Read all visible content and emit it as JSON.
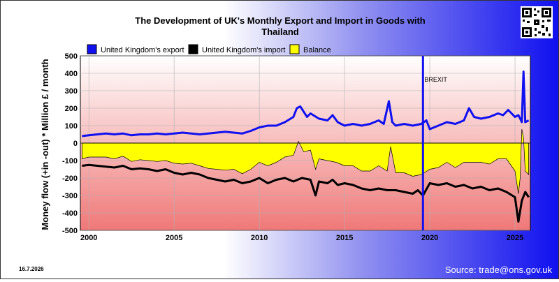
{
  "date_stamp": "16.7.2026",
  "source": "Source: trade@ons.gov.uk",
  "colors": {
    "export": "#1010f0",
    "import": "#000000",
    "balance": "#ffff00",
    "brexit": "#1010f0"
  },
  "chart_data": {
    "type": "line",
    "title": "The Development of UK's Monthly Export and Import in Goods with Thailand",
    "title_lines": [
      "The Development of UK's Monthly Export and Import in Goods with",
      "Thailand"
    ],
    "ylabel": "Money flow (+in -out) * Million £ / month",
    "xlabel": "",
    "xlim": [
      1999.5,
      2025.9
    ],
    "ylim": [
      -500,
      500
    ],
    "x_ticks": [
      2000,
      2005,
      2010,
      2015,
      2020,
      2025
    ],
    "x_tick_labels": [
      "2000",
      "2005",
      "2010",
      "2015",
      "2020",
      "2025"
    ],
    "y_ticks": [
      -500,
      -400,
      -300,
      -200,
      -100,
      0,
      100,
      200,
      300,
      400,
      500
    ],
    "y_tick_labels": [
      "-500",
      "-400",
      "-300",
      "-200",
      "-100",
      "0",
      "100",
      "200",
      "300",
      "400",
      "500"
    ],
    "grid": true,
    "legend_position": "top-left",
    "annotations": [
      {
        "x": 2019.6,
        "text": "BREXIT"
      }
    ],
    "series": [
      {
        "name": "United Kingdom's export",
        "style": "line",
        "x": [
          1999.6,
          2000.0,
          2000.5,
          2001.0,
          2001.5,
          2002.0,
          2002.5,
          2003.0,
          2003.5,
          2004.0,
          2004.5,
          2005.0,
          2005.5,
          2006.0,
          2006.5,
          2007.0,
          2007.5,
          2008.0,
          2008.5,
          2009.0,
          2009.5,
          2010.0,
          2010.5,
          2011.0,
          2011.5,
          2012.0,
          2012.2,
          2012.4,
          2012.6,
          2012.8,
          2013.0,
          2013.5,
          2014.0,
          2014.3,
          2014.6,
          2015.0,
          2015.5,
          2016.0,
          2016.5,
          2017.0,
          2017.3,
          2017.6,
          2017.8,
          2018.0,
          2018.5,
          2019.0,
          2019.5,
          2019.8,
          2020.0,
          2020.5,
          2021.0,
          2021.5,
          2022.0,
          2022.3,
          2022.6,
          2023.0,
          2023.5,
          2024.0,
          2024.3,
          2024.6,
          2025.0,
          2025.2,
          2025.3,
          2025.4,
          2025.5,
          2025.6,
          2025.8
        ],
        "values": [
          40,
          45,
          50,
          55,
          50,
          55,
          45,
          50,
          50,
          55,
          50,
          55,
          60,
          55,
          50,
          55,
          60,
          65,
          60,
          55,
          70,
          90,
          100,
          100,
          120,
          150,
          200,
          210,
          180,
          150,
          170,
          140,
          130,
          160,
          120,
          100,
          110,
          100,
          110,
          130,
          110,
          240,
          120,
          100,
          110,
          100,
          110,
          130,
          80,
          100,
          120,
          110,
          130,
          200,
          150,
          140,
          150,
          170,
          160,
          190,
          150,
          160,
          140,
          120,
          410,
          120,
          130
        ]
      },
      {
        "name": "United Kingdom's import",
        "style": "line",
        "x": [
          1999.6,
          2000.0,
          2000.5,
          2001.0,
          2001.5,
          2002.0,
          2002.5,
          2003.0,
          2003.5,
          2004.0,
          2004.5,
          2005.0,
          2005.5,
          2006.0,
          2006.5,
          2007.0,
          2007.5,
          2008.0,
          2008.5,
          2009.0,
          2009.5,
          2010.0,
          2010.5,
          2011.0,
          2011.5,
          2012.0,
          2012.5,
          2013.0,
          2013.3,
          2013.5,
          2014.0,
          2014.3,
          2014.6,
          2015.0,
          2015.5,
          2016.0,
          2016.5,
          2017.0,
          2017.5,
          2018.0,
          2018.5,
          2019.0,
          2019.3,
          2019.6,
          2020.0,
          2020.5,
          2021.0,
          2021.5,
          2022.0,
          2022.5,
          2023.0,
          2023.5,
          2024.0,
          2024.5,
          2025.0,
          2025.2,
          2025.4,
          2025.6,
          2025.8
        ],
        "values": [
          -130,
          -125,
          -130,
          -135,
          -140,
          -130,
          -150,
          -145,
          -150,
          -160,
          -150,
          -170,
          -180,
          -170,
          -180,
          -200,
          -210,
          -220,
          -210,
          -230,
          -220,
          -200,
          -230,
          -210,
          -200,
          -220,
          -200,
          -210,
          -300,
          -220,
          -230,
          -210,
          -240,
          -230,
          -240,
          -260,
          -270,
          -260,
          -270,
          -270,
          -280,
          -290,
          -270,
          -300,
          -230,
          -240,
          -230,
          -250,
          -240,
          -260,
          -250,
          -270,
          -260,
          -280,
          -310,
          -450,
          -330,
          -280,
          -310
        ]
      },
      {
        "name": "Balance",
        "style": "area",
        "x": [
          1999.6,
          2000.0,
          2000.5,
          2001.0,
          2001.5,
          2002.0,
          2002.5,
          2003.0,
          2003.5,
          2004.0,
          2004.5,
          2005.0,
          2005.5,
          2006.0,
          2006.5,
          2007.0,
          2007.5,
          2008.0,
          2008.5,
          2009.0,
          2009.5,
          2010.0,
          2010.5,
          2011.0,
          2011.5,
          2012.0,
          2012.3,
          2012.6,
          2013.0,
          2013.3,
          2013.5,
          2014.0,
          2014.5,
          2015.0,
          2015.5,
          2016.0,
          2016.5,
          2017.0,
          2017.5,
          2017.7,
          2018.0,
          2018.5,
          2019.0,
          2019.5,
          2020.0,
          2020.5,
          2021.0,
          2021.5,
          2022.0,
          2022.5,
          2023.0,
          2023.5,
          2024.0,
          2024.5,
          2025.0,
          2025.2,
          2025.3,
          2025.4,
          2025.5,
          2025.6,
          2025.8
        ],
        "values": [
          -90,
          -80,
          -80,
          -80,
          -90,
          -75,
          -105,
          -95,
          -100,
          -105,
          -100,
          -115,
          -120,
          -115,
          -130,
          -145,
          -150,
          -155,
          -150,
          -175,
          -150,
          -110,
          -130,
          -110,
          -80,
          -70,
          10,
          -50,
          -40,
          -150,
          -90,
          -100,
          -110,
          -130,
          -130,
          -160,
          -160,
          -130,
          -160,
          -20,
          -170,
          -170,
          -190,
          -180,
          -150,
          -140,
          -110,
          -140,
          -110,
          -110,
          -110,
          -120,
          -90,
          -90,
          -160,
          -290,
          -200,
          80,
          30,
          -160,
          -180
        ]
      }
    ]
  }
}
